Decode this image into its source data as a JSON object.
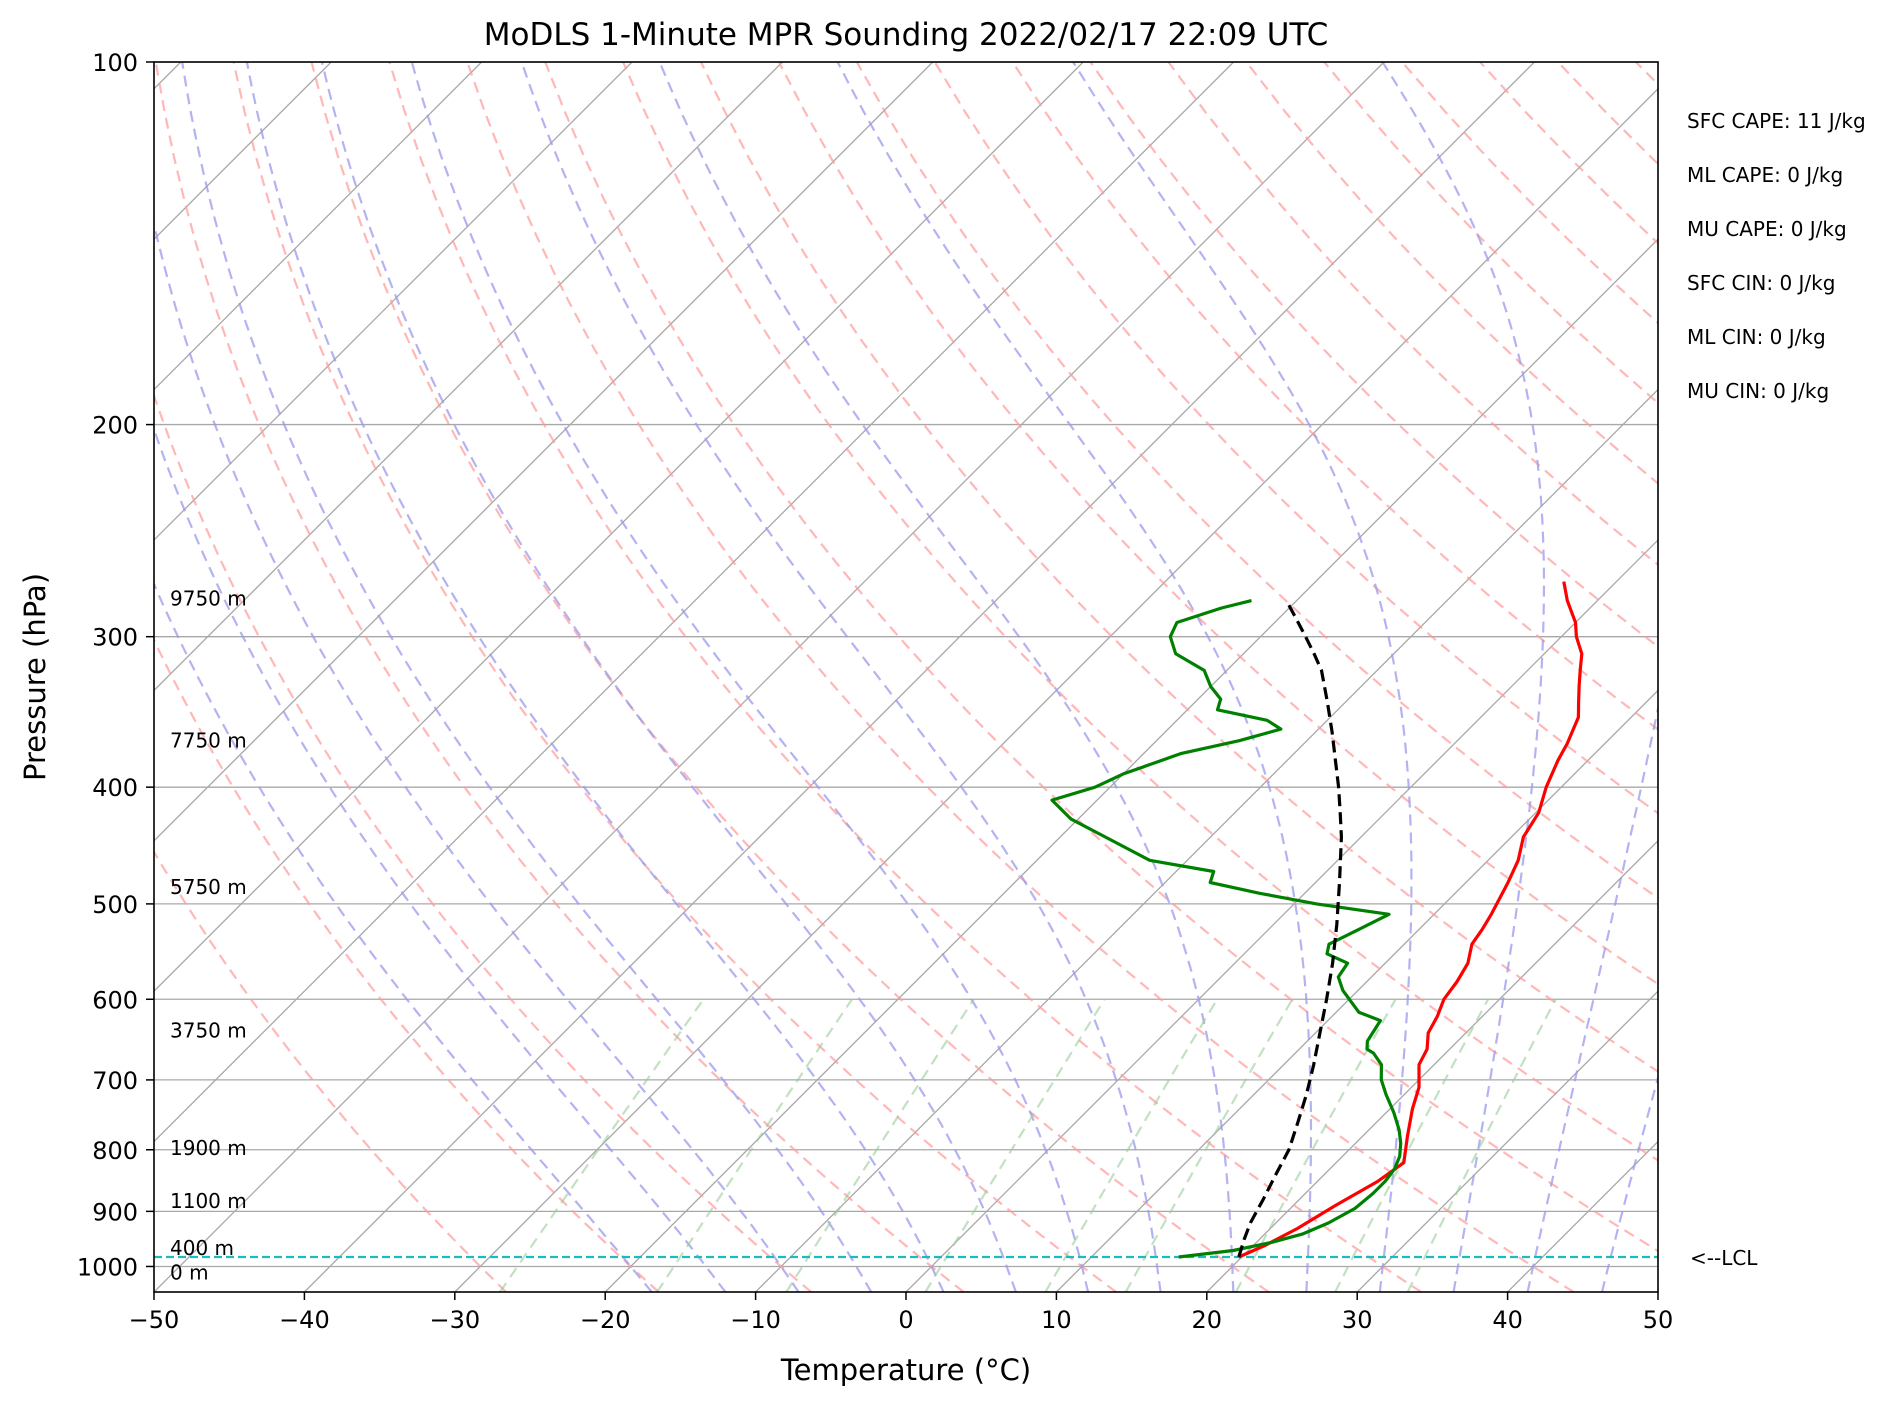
{
  "chart_data": {
    "type": "line",
    "title": "MoDLS 1-Minute MPR Sounding 2022/02/17 22:09 UTC",
    "xlabel": "Temperature (°C)",
    "ylabel": "Pressure (hPa)",
    "xlim": [
      -50,
      50
    ],
    "ylim": [
      1050,
      100
    ],
    "y_scale": "log",
    "x_ticks": [
      "−50",
      "−40",
      "−30",
      "−20",
      "−10",
      "0",
      "10",
      "20",
      "30",
      "40",
      "50"
    ],
    "x_tick_values": [
      -50,
      -40,
      -30,
      -20,
      -10,
      0,
      10,
      20,
      30,
      40,
      50
    ],
    "y_ticks": [
      "100",
      "200",
      "300",
      "400",
      "500",
      "600",
      "700",
      "800",
      "900",
      "1000"
    ],
    "y_tick_values": [
      100,
      200,
      300,
      400,
      500,
      600,
      700,
      800,
      900,
      1000
    ],
    "grid": true,
    "skew": true,
    "series": [
      {
        "color": "#ff0000",
        "points": [
          [
            19.8,
            982
          ],
          [
            20.8,
            960
          ],
          [
            21.8,
            930
          ],
          [
            22.8,
            890
          ],
          [
            24.0,
            850
          ],
          [
            24.5,
            820
          ],
          [
            23.0,
            780
          ],
          [
            21.5,
            740
          ],
          [
            20.5,
            710
          ],
          [
            19.0,
            680
          ],
          [
            18.5,
            660
          ],
          [
            17.5,
            640
          ],
          [
            17.0,
            620
          ],
          [
            16.3,
            600
          ],
          [
            16.0,
            580
          ],
          [
            15.5,
            560
          ],
          [
            14.5,
            540
          ],
          [
            14.2,
            525
          ],
          [
            13.8,
            510
          ],
          [
            12.8,
            480
          ],
          [
            12.0,
            460
          ],
          [
            10.8,
            440
          ],
          [
            10.2,
            420
          ],
          [
            9.0,
            400
          ],
          [
            8.0,
            380
          ],
          [
            7.5,
            368
          ],
          [
            6.5,
            350
          ],
          [
            5.5,
            340
          ],
          [
            4.5,
            330
          ],
          [
            3.5,
            320
          ],
          [
            2.5,
            310
          ],
          [
            1.0,
            300
          ],
          [
            0.0,
            292
          ],
          [
            -2.0,
            280
          ],
          [
            -3.5,
            270
          ]
        ]
      },
      {
        "color": "#008000",
        "points": [
          [
            15.8,
            982
          ],
          [
            19.0,
            970
          ],
          [
            21.0,
            955
          ],
          [
            22.5,
            940
          ],
          [
            23.5,
            920
          ],
          [
            24.3,
            895
          ],
          [
            24.5,
            870
          ],
          [
            24.5,
            850
          ],
          [
            24.3,
            830
          ],
          [
            23.8,
            810
          ],
          [
            23.0,
            790
          ],
          [
            22.0,
            770
          ],
          [
            20.5,
            745
          ],
          [
            18.8,
            720
          ],
          [
            17.5,
            700
          ],
          [
            16.5,
            680
          ],
          [
            15.2,
            665
          ],
          [
            14.5,
            660
          ],
          [
            14.0,
            650
          ],
          [
            13.5,
            625
          ],
          [
            11.5,
            615
          ],
          [
            9.0,
            590
          ],
          [
            7.8,
            575
          ],
          [
            7.5,
            560
          ],
          [
            5.5,
            550
          ],
          [
            5.0,
            540
          ],
          [
            6.0,
            525
          ],
          [
            7.0,
            510
          ],
          [
            1.5,
            500
          ],
          [
            -3.0,
            490
          ],
          [
            -7.0,
            480
          ],
          [
            -7.5,
            470
          ],
          [
            -12.5,
            460
          ],
          [
            -17.0,
            440
          ],
          [
            -20.5,
            425
          ],
          [
            -23.0,
            410
          ],
          [
            -21.0,
            400
          ],
          [
            -20.0,
            390
          ],
          [
            -19.0,
            384
          ],
          [
            -17.5,
            375
          ],
          [
            -14.5,
            366
          ],
          [
            -12.5,
            358
          ],
          [
            -14.0,
            352
          ],
          [
            -18.0,
            345
          ],
          [
            -18.5,
            338
          ],
          [
            -20.0,
            330
          ],
          [
            -21.5,
            320
          ],
          [
            -24.5,
            310
          ],
          [
            -26.0,
            300
          ],
          [
            -26.5,
            292
          ],
          [
            -24.5,
            284
          ],
          [
            -23.0,
            280
          ]
        ]
      },
      {
        "color": "#000000",
        "dashed": true,
        "points": [
          [
            19.8,
            982
          ],
          [
            19.0,
            950
          ],
          [
            18.3,
            920
          ],
          [
            17.6,
            880
          ],
          [
            16.8,
            840
          ],
          [
            16.0,
            800
          ],
          [
            14.8,
            760
          ],
          [
            13.5,
            720
          ],
          [
            12.0,
            680
          ],
          [
            10.3,
            640
          ],
          [
            8.5,
            600
          ],
          [
            6.5,
            560
          ],
          [
            4.2,
            520
          ],
          [
            1.6,
            480
          ],
          [
            -1.3,
            440
          ],
          [
            -3.0,
            420
          ],
          [
            -4.8,
            400
          ],
          [
            -6.8,
            380
          ],
          [
            -8.9,
            360
          ],
          [
            -11.2,
            340
          ],
          [
            -13.7,
            320
          ],
          [
            -15.3,
            310
          ],
          [
            -17.0,
            300
          ],
          [
            -18.8,
            290
          ],
          [
            -20.3,
            282
          ]
        ]
      }
    ],
    "lcl_pressure": 982,
    "lcl_label": "<--LCL",
    "height_labels": [
      {
        "text": "0 m",
        "pressure": 1012
      },
      {
        "text": "400 m",
        "pressure": 965
      },
      {
        "text": "1100 m",
        "pressure": 882
      },
      {
        "text": "1900 m",
        "pressure": 797
      },
      {
        "text": "3750 m",
        "pressure": 637
      },
      {
        "text": "5750 m",
        "pressure": 484
      },
      {
        "text": "7750 m",
        "pressure": 366
      },
      {
        "text": "9750 m",
        "pressure": 279
      }
    ],
    "annotations": [
      "SFC CAPE: 11 J/kg",
      "ML CAPE: 0 J/kg",
      "MU CAPE: 0 J/kg",
      "SFC CIN: 0 J/kg",
      "ML CIN: 0 J/kg",
      "MU CIN: 0 J/kg"
    ],
    "colors": {
      "temperature": "#ff0000",
      "dewpoint": "#008000",
      "parcel": "#000000",
      "lcl": "#1bbcc0",
      "dry_adiabats": "#ff9999",
      "moist_adiabats": "#9999ee",
      "mixing_ratio": "#99cc99",
      "grid": "#a8a8a8"
    }
  }
}
